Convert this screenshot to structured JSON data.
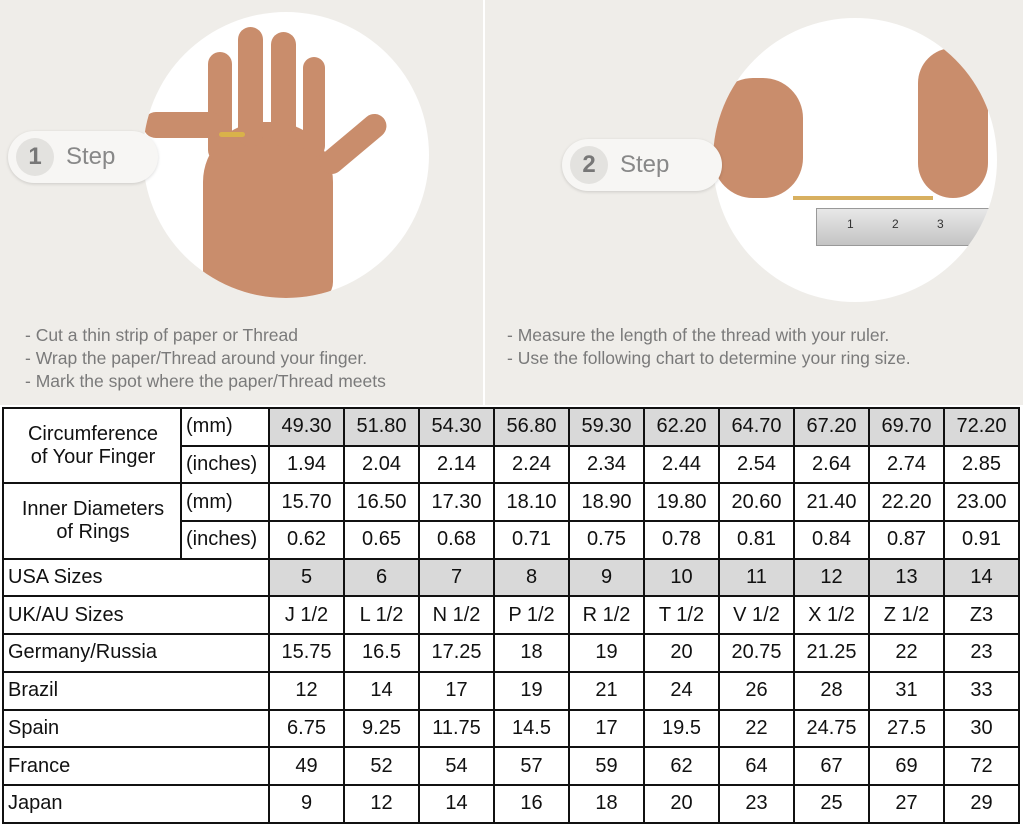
{
  "steps": [
    {
      "number": "1",
      "label": "Step",
      "instructions": [
        "- Cut a thin strip of paper or Thread",
        "- Wrap the paper/Thread around your finger.",
        "- Mark the spot where the paper/Thread meets"
      ]
    },
    {
      "number": "2",
      "label": "Step",
      "instructions": [
        "- Measure the length of the thread with your ruler.",
        "- Use the following chart to determine your ring size."
      ]
    }
  ],
  "ruler_marks": [
    "1",
    "2",
    "3"
  ],
  "table": {
    "circumference": {
      "label_lines": [
        "Circumference",
        "of Your Finger"
      ],
      "mm": {
        "unit": "(mm)",
        "values": [
          "49.30",
          "51.80",
          "54.30",
          "56.80",
          "59.30",
          "62.20",
          "64.70",
          "67.20",
          "69.70",
          "72.20"
        ]
      },
      "inches": {
        "unit": "(inches)",
        "values": [
          "1.94",
          "2.04",
          "2.14",
          "2.24",
          "2.34",
          "2.44",
          "2.54",
          "2.64",
          "2.74",
          "2.85"
        ]
      }
    },
    "inner_diameter": {
      "label_lines": [
        "Inner Diameters",
        "of Rings"
      ],
      "mm": {
        "unit": "(mm)",
        "values": [
          "15.70",
          "16.50",
          "17.30",
          "18.10",
          "18.90",
          "19.80",
          "20.60",
          "21.40",
          "22.20",
          "23.00"
        ]
      },
      "inches": {
        "unit": "(inches)",
        "values": [
          "0.62",
          "0.65",
          "0.68",
          "0.71",
          "0.75",
          "0.78",
          "0.81",
          "0.84",
          "0.87",
          "0.91"
        ]
      }
    },
    "rows": [
      {
        "label": "USA Sizes",
        "values": [
          "5",
          "6",
          "7",
          "8",
          "9",
          "10",
          "11",
          "12",
          "13",
          "14"
        ],
        "highlight": true
      },
      {
        "label": "UK/AU Sizes",
        "values": [
          "J 1/2",
          "L 1/2",
          "N 1/2",
          "P 1/2",
          "R 1/2",
          "T 1/2",
          "V 1/2",
          "X 1/2",
          "Z 1/2",
          "Z3"
        ]
      },
      {
        "label": "Germany/Russia",
        "values": [
          "15.75",
          "16.5",
          "17.25",
          "18",
          "19",
          "20",
          "20.75",
          "21.25",
          "22",
          "23"
        ]
      },
      {
        "label": "Brazil",
        "values": [
          "12",
          "14",
          "17",
          "19",
          "21",
          "24",
          "26",
          "28",
          "31",
          "33"
        ]
      },
      {
        "label": "Spain",
        "values": [
          "6.75",
          "9.25",
          "11.75",
          "14.5",
          "17",
          "19.5",
          "22",
          "24.75",
          "27.5",
          "30"
        ]
      },
      {
        "label": "France",
        "values": [
          "49",
          "52",
          "54",
          "57",
          "59",
          "62",
          "64",
          "67",
          "69",
          "72"
        ]
      },
      {
        "label": "Japan",
        "values": [
          "9",
          "12",
          "14",
          "16",
          "18",
          "20",
          "23",
          "25",
          "27",
          "29"
        ]
      }
    ],
    "highlight_color": "#d9d9d9"
  }
}
